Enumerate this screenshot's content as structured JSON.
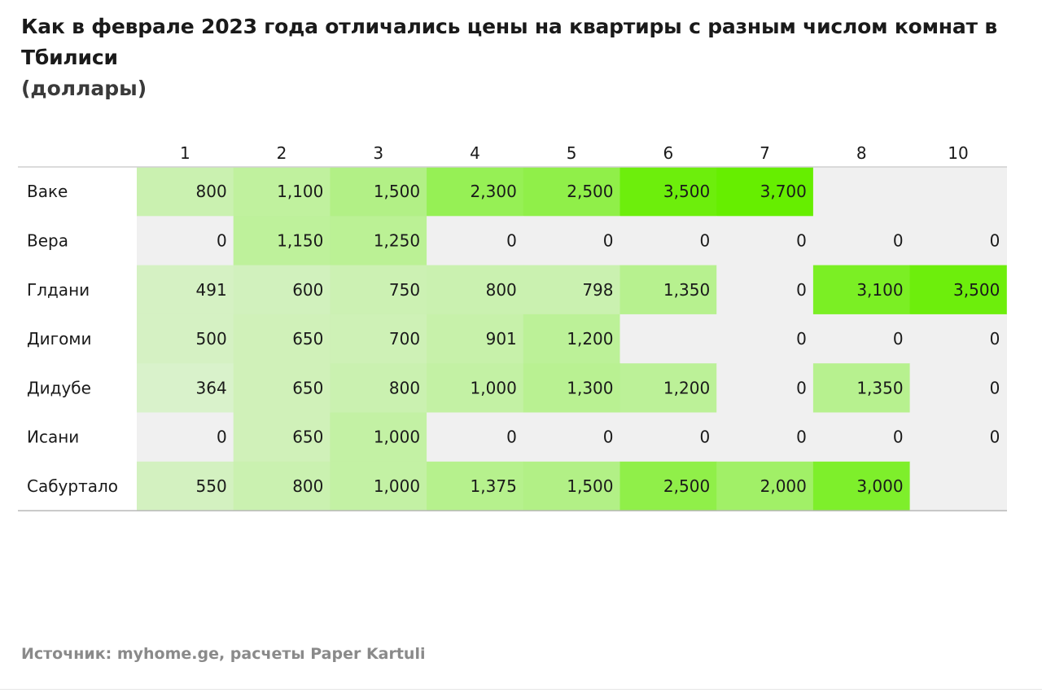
{
  "chart_data": {
    "type": "heatmap",
    "title": "Как в феврале  2023 года отличались цены на квартиры с разным числом комнат в Тбилиси",
    "subtitle": "(доллары)",
    "columns": [
      "1",
      "2",
      "3",
      "4",
      "5",
      "6",
      "7",
      "8",
      "10"
    ],
    "rows": [
      "Ваке",
      "Вера",
      "Глдани",
      "Дигоми",
      "Дидубе",
      "Исани",
      "Сабуртало"
    ],
    "values": [
      [
        800,
        1100,
        1500,
        2300,
        2500,
        3500,
        3700,
        null,
        null
      ],
      [
        0,
        1150,
        1250,
        0,
        0,
        0,
        0,
        0,
        0
      ],
      [
        491,
        600,
        750,
        800,
        798,
        1350,
        0,
        3100,
        3500
      ],
      [
        500,
        650,
        700,
        901,
        1200,
        null,
        0,
        0,
        0
      ],
      [
        364,
        650,
        800,
        1000,
        1300,
        1200,
        0,
        1350,
        0
      ],
      [
        0,
        650,
        1000,
        0,
        0,
        0,
        0,
        0,
        0
      ],
      [
        550,
        800,
        1000,
        1375,
        1500,
        2500,
        2000,
        3000,
        null
      ]
    ],
    "labels": [
      [
        "800",
        "1,100",
        "1,500",
        "2,300",
        "2,500",
        "3,500",
        "3,700",
        "",
        ""
      ],
      [
        "0",
        "1,150",
        "1,250",
        "0",
        "0",
        "0",
        "0",
        "0",
        "0"
      ],
      [
        "491",
        "600",
        "750",
        "800",
        "798",
        "1,350",
        "0",
        "3,100",
        "3,500"
      ],
      [
        "500",
        "650",
        "700",
        "901",
        "1,200",
        "",
        "0",
        "0",
        "0"
      ],
      [
        "364",
        "650",
        "800",
        "1,000",
        "1,300",
        "1,200",
        "0",
        "1,350",
        "0"
      ],
      [
        "0",
        "650",
        "1,000",
        "0",
        "0",
        "0",
        "0",
        "0",
        "0"
      ],
      [
        "550",
        "800",
        "1,000",
        "1,375",
        "1,500",
        "2,500",
        "2,000",
        "3,000",
        ""
      ]
    ],
    "color_scale": {
      "min": 0,
      "max": 3700,
      "low": "#e6f2e1",
      "high": "#66ee00",
      "empty": "#f0f0f0"
    }
  },
  "source": "Источник: myhome.ge, расчеты Paper Kartuli"
}
